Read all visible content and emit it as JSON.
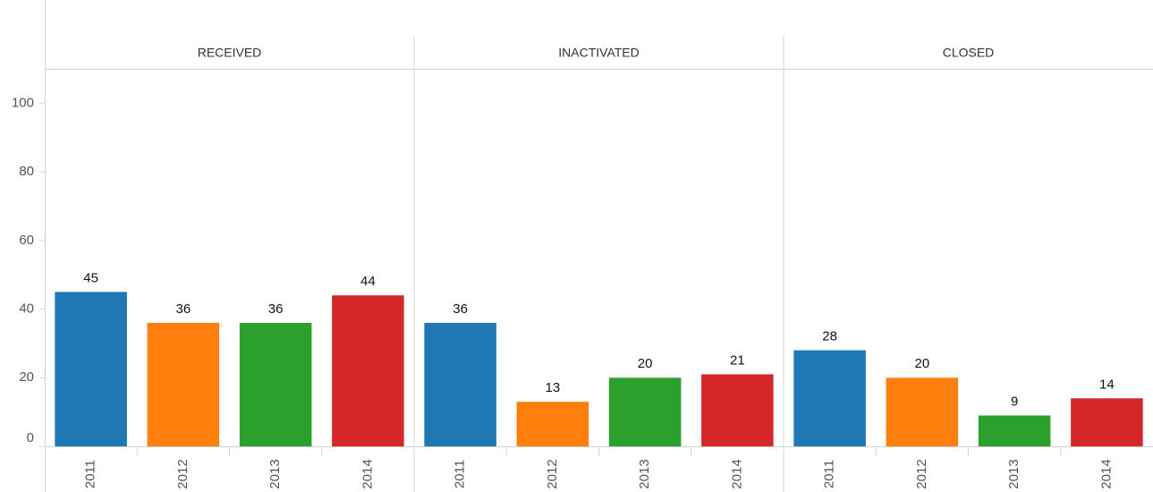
{
  "chart_data": {
    "type": "bar",
    "categories": [
      "2011",
      "2012",
      "2013",
      "2014"
    ],
    "colors": [
      "#1f77b4",
      "#ff7f0e",
      "#2ca02c",
      "#d62728"
    ],
    "panels": [
      {
        "title": "RECEIVED",
        "values": [
          45,
          36,
          36,
          44
        ]
      },
      {
        "title": "INACTIVATED",
        "values": [
          36,
          13,
          20,
          21
        ]
      },
      {
        "title": "CLOSED",
        "values": [
          28,
          20,
          9,
          14
        ]
      }
    ],
    "ylim": [
      0,
      110
    ],
    "yticks": [
      0,
      20,
      40,
      60,
      80,
      100
    ]
  }
}
